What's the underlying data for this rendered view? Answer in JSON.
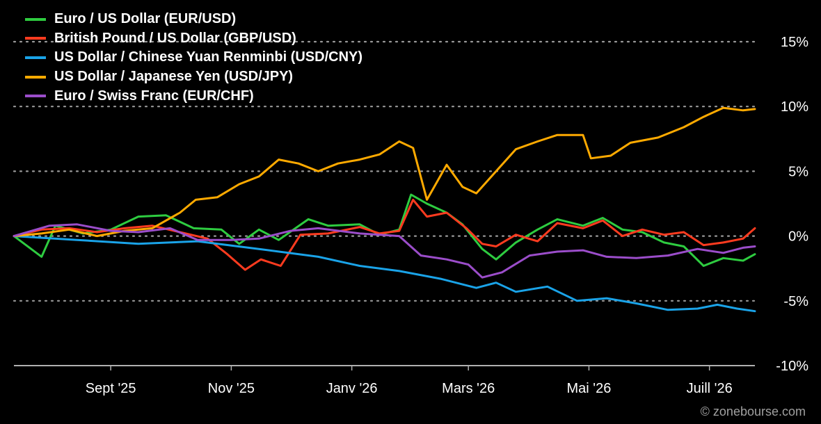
{
  "colors": {
    "background": "#000000",
    "grid": "#9a9a9a",
    "axis": "#b0b0b0",
    "text": "#ffffff",
    "credit": "#a0a0a0"
  },
  "credit": "© zonebourse.com",
  "chart_data": {
    "type": "line",
    "title": "",
    "xlabel": "",
    "ylabel": "",
    "x_range": [
      "2025-07-14",
      "2026-07-24"
    ],
    "ylim": [
      -10,
      15
    ],
    "y_ticks": [
      {
        "value": 15,
        "label": "15%"
      },
      {
        "value": 10,
        "label": "10%"
      },
      {
        "value": 5,
        "label": "5%"
      },
      {
        "value": 0,
        "label": "0%"
      },
      {
        "value": -5,
        "label": "-5%"
      },
      {
        "value": -10,
        "label": "-10%"
      }
    ],
    "x_ticks": [
      {
        "date": "2025-09-01",
        "label": "Sept '25"
      },
      {
        "date": "2025-11-01",
        "label": "Nov '25"
      },
      {
        "date": "2026-01-01",
        "label": "Janv '26"
      },
      {
        "date": "2026-03-01",
        "label": "Mars '26"
      },
      {
        "date": "2026-05-01",
        "label": "Mai '26"
      },
      {
        "date": "2026-07-01",
        "label": "Juill '26"
      }
    ],
    "grid": "horizontal-dotted",
    "legend_position": "top-left",
    "y_axis_position": "right",
    "series": [
      {
        "name": "Euro / US Dollar (EUR/USD)",
        "color": "#2ecc40",
        "points": [
          [
            "2025-07-14",
            0.0
          ],
          [
            "2025-07-28",
            -1.6
          ],
          [
            "2025-08-04",
            0.8
          ],
          [
            "2025-08-18",
            0.2
          ],
          [
            "2025-09-01",
            0.5
          ],
          [
            "2025-09-15",
            1.5
          ],
          [
            "2025-09-29",
            1.6
          ],
          [
            "2025-10-13",
            0.6
          ],
          [
            "2025-10-27",
            0.5
          ],
          [
            "2025-11-05",
            -0.6
          ],
          [
            "2025-11-15",
            0.5
          ],
          [
            "2025-11-25",
            -0.3
          ],
          [
            "2025-12-10",
            1.3
          ],
          [
            "2025-12-20",
            0.8
          ],
          [
            "2026-01-05",
            0.9
          ],
          [
            "2026-01-15",
            0.1
          ],
          [
            "2026-01-25",
            0.5
          ],
          [
            "2026-01-31",
            3.2
          ],
          [
            "2026-02-08",
            2.5
          ],
          [
            "2026-02-18",
            1.8
          ],
          [
            "2026-02-26",
            0.9
          ],
          [
            "2026-03-08",
            -1.0
          ],
          [
            "2026-03-15",
            -1.8
          ],
          [
            "2026-03-25",
            -0.5
          ],
          [
            "2026-04-05",
            0.5
          ],
          [
            "2026-04-15",
            1.3
          ],
          [
            "2026-04-28",
            0.8
          ],
          [
            "2026-05-08",
            1.4
          ],
          [
            "2026-05-18",
            0.5
          ],
          [
            "2026-05-28",
            0.3
          ],
          [
            "2026-06-08",
            -0.5
          ],
          [
            "2026-06-18",
            -0.8
          ],
          [
            "2026-06-28",
            -2.3
          ],
          [
            "2026-07-08",
            -1.7
          ],
          [
            "2026-07-18",
            -1.9
          ],
          [
            "2026-07-24",
            -1.4
          ]
        ]
      },
      {
        "name": "British Pound / US Dollar (GBP/USD)",
        "color": "#ff3b1f",
        "points": [
          [
            "2025-07-14",
            0.0
          ],
          [
            "2025-07-28",
            0.5
          ],
          [
            "2025-08-11",
            0.6
          ],
          [
            "2025-08-25",
            0.3
          ],
          [
            "2025-09-08",
            0.6
          ],
          [
            "2025-09-22",
            0.8
          ],
          [
            "2025-10-06",
            0.3
          ],
          [
            "2025-10-20",
            -0.2
          ],
          [
            "2025-10-30",
            -1.4
          ],
          [
            "2025-11-08",
            -2.6
          ],
          [
            "2025-11-16",
            -1.8
          ],
          [
            "2025-11-26",
            -2.3
          ],
          [
            "2025-12-06",
            0.1
          ],
          [
            "2025-12-20",
            0.2
          ],
          [
            "2026-01-05",
            0.7
          ],
          [
            "2026-01-15",
            0.2
          ],
          [
            "2026-01-25",
            0.4
          ],
          [
            "2026-02-01",
            2.8
          ],
          [
            "2026-02-08",
            1.5
          ],
          [
            "2026-02-18",
            1.8
          ],
          [
            "2026-02-28",
            0.6
          ],
          [
            "2026-03-08",
            -0.6
          ],
          [
            "2026-03-15",
            -0.8
          ],
          [
            "2026-03-25",
            0.1
          ],
          [
            "2026-04-05",
            -0.4
          ],
          [
            "2026-04-15",
            1.0
          ],
          [
            "2026-04-28",
            0.6
          ],
          [
            "2026-05-08",
            1.2
          ],
          [
            "2026-05-18",
            0.0
          ],
          [
            "2026-05-28",
            0.5
          ],
          [
            "2026-06-08",
            0.1
          ],
          [
            "2026-06-18",
            0.3
          ],
          [
            "2026-06-28",
            -0.7
          ],
          [
            "2026-07-08",
            -0.5
          ],
          [
            "2026-07-18",
            -0.2
          ],
          [
            "2026-07-24",
            0.6
          ]
        ]
      },
      {
        "name": "US Dollar / Chinese Yuan Renminbi (USD/CNY)",
        "color": "#1aa3e8",
        "points": [
          [
            "2025-07-14",
            0.0
          ],
          [
            "2025-08-15",
            -0.3
          ],
          [
            "2025-09-15",
            -0.6
          ],
          [
            "2025-10-15",
            -0.4
          ],
          [
            "2025-11-15",
            -1.0
          ],
          [
            "2025-12-15",
            -1.6
          ],
          [
            "2026-01-05",
            -2.3
          ],
          [
            "2026-01-25",
            -2.7
          ],
          [
            "2026-02-15",
            -3.3
          ],
          [
            "2026-03-05",
            -4.0
          ],
          [
            "2026-03-15",
            -3.6
          ],
          [
            "2026-03-25",
            -4.3
          ],
          [
            "2026-04-10",
            -3.9
          ],
          [
            "2026-04-25",
            -5.0
          ],
          [
            "2026-05-10",
            -4.8
          ],
          [
            "2026-05-25",
            -5.2
          ],
          [
            "2026-06-10",
            -5.7
          ],
          [
            "2026-06-25",
            -5.6
          ],
          [
            "2026-07-05",
            -5.3
          ],
          [
            "2026-07-15",
            -5.6
          ],
          [
            "2026-07-24",
            -5.8
          ]
        ]
      },
      {
        "name": "US Dollar / Japanese Yen (USD/JPY)",
        "color": "#ffaa00",
        "points": [
          [
            "2025-07-14",
            0.0
          ],
          [
            "2025-07-28",
            0.2
          ],
          [
            "2025-08-11",
            0.5
          ],
          [
            "2025-08-25",
            0.0
          ],
          [
            "2025-09-08",
            0.4
          ],
          [
            "2025-09-22",
            0.6
          ],
          [
            "2025-10-06",
            1.8
          ],
          [
            "2025-10-14",
            2.8
          ],
          [
            "2025-10-25",
            3.0
          ],
          [
            "2025-11-05",
            4.0
          ],
          [
            "2025-11-15",
            4.6
          ],
          [
            "2025-11-25",
            5.9
          ],
          [
            "2025-12-05",
            5.6
          ],
          [
            "2025-12-15",
            5.0
          ],
          [
            "2025-12-25",
            5.6
          ],
          [
            "2026-01-05",
            5.9
          ],
          [
            "2026-01-15",
            6.3
          ],
          [
            "2026-01-25",
            7.3
          ],
          [
            "2026-02-01",
            6.8
          ],
          [
            "2026-02-08",
            2.8
          ],
          [
            "2026-02-18",
            5.5
          ],
          [
            "2026-02-26",
            3.8
          ],
          [
            "2026-03-05",
            3.3
          ],
          [
            "2026-03-15",
            5.0
          ],
          [
            "2026-03-25",
            6.7
          ],
          [
            "2026-04-05",
            7.3
          ],
          [
            "2026-04-15",
            7.8
          ],
          [
            "2026-04-28",
            7.8
          ],
          [
            "2026-05-02",
            6.0
          ],
          [
            "2026-05-12",
            6.2
          ],
          [
            "2026-05-22",
            7.2
          ],
          [
            "2026-06-05",
            7.6
          ],
          [
            "2026-06-18",
            8.4
          ],
          [
            "2026-06-28",
            9.2
          ],
          [
            "2026-07-08",
            9.9
          ],
          [
            "2026-07-18",
            9.7
          ],
          [
            "2026-07-24",
            9.8
          ]
        ]
      },
      {
        "name": "Euro / Swiss Franc (EUR/CHF)",
        "color": "#9b4dca",
        "points": [
          [
            "2025-07-14",
            0.0
          ],
          [
            "2025-08-01",
            0.8
          ],
          [
            "2025-08-15",
            0.9
          ],
          [
            "2025-09-01",
            0.4
          ],
          [
            "2025-09-15",
            0.3
          ],
          [
            "2025-10-01",
            0.6
          ],
          [
            "2025-10-15",
            -0.3
          ],
          [
            "2025-11-01",
            -0.3
          ],
          [
            "2025-11-15",
            -0.2
          ],
          [
            "2025-12-01",
            0.4
          ],
          [
            "2025-12-15",
            0.6
          ],
          [
            "2026-01-05",
            0.2
          ],
          [
            "2026-01-25",
            0.0
          ],
          [
            "2026-02-05",
            -1.5
          ],
          [
            "2026-02-18",
            -1.8
          ],
          [
            "2026-03-01",
            -2.2
          ],
          [
            "2026-03-08",
            -3.2
          ],
          [
            "2026-03-18",
            -2.8
          ],
          [
            "2026-04-01",
            -1.5
          ],
          [
            "2026-04-15",
            -1.2
          ],
          [
            "2026-04-28",
            -1.1
          ],
          [
            "2026-05-10",
            -1.6
          ],
          [
            "2026-05-25",
            -1.7
          ],
          [
            "2026-06-10",
            -1.5
          ],
          [
            "2026-06-25",
            -1.0
          ],
          [
            "2026-07-08",
            -1.3
          ],
          [
            "2026-07-18",
            -0.9
          ],
          [
            "2026-07-24",
            -0.8
          ]
        ]
      }
    ]
  }
}
